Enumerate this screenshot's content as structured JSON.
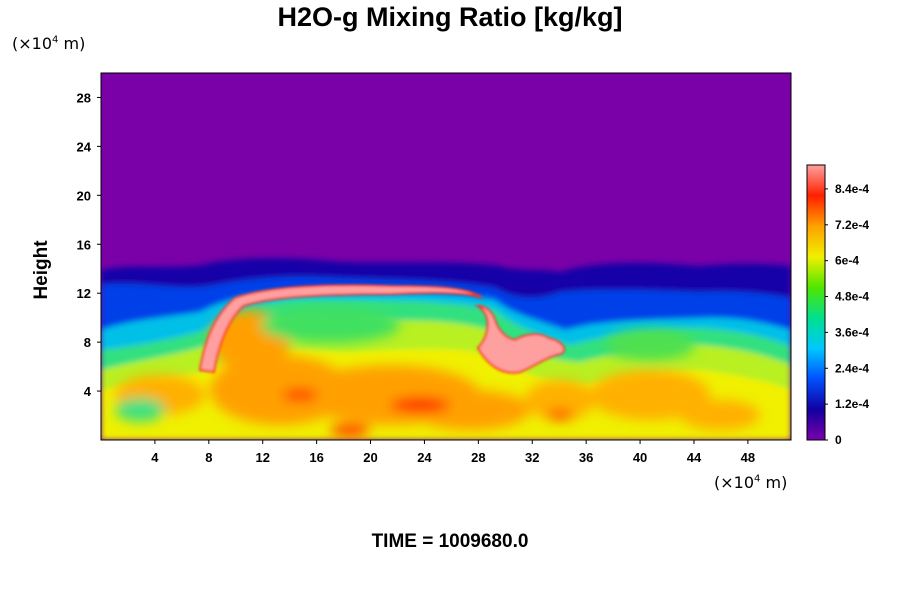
{
  "chart_data": {
    "type": "heatmap",
    "title": "H2O-g Mixing Ratio [kg/kg]",
    "ylabel": "Height",
    "xlabel": "",
    "y_units": {
      "prefix": "(×10",
      "exp": "4",
      "suffix": " m)"
    },
    "x_units": {
      "prefix": "(×10",
      "exp": "4",
      "suffix": " m)"
    },
    "x_ticks": [
      "4",
      "8",
      "12",
      "16",
      "20",
      "24",
      "28",
      "32",
      "36",
      "40",
      "44",
      "48"
    ],
    "x_tick_values": [
      4,
      8,
      12,
      16,
      20,
      24,
      28,
      32,
      36,
      40,
      44,
      48
    ],
    "y_ticks": [
      "4",
      "8",
      "12",
      "16",
      "20",
      "24",
      "28"
    ],
    "y_tick_values": [
      4,
      8,
      12,
      16,
      20,
      24,
      28
    ],
    "xlim": [
      0,
      51.2
    ],
    "ylim": [
      0,
      30
    ],
    "colorbar": {
      "range": [
        0,
        0.00092
      ],
      "labels": [
        "0",
        "1.2e-4",
        "2.4e-4",
        "3.6e-4",
        "4.8e-4",
        "6e-4",
        "7.2e-4",
        "8.4e-4"
      ],
      "label_values": [
        0,
        0.00012,
        0.00024,
        0.00036,
        0.00048,
        0.0006,
        0.00072,
        0.00084
      ],
      "colors": [
        "#7a00a8",
        "#1200a0",
        "#0050ff",
        "#00c8ff",
        "#00e08c",
        "#50e600",
        "#f0f000",
        "#ffa000",
        "#ff2000",
        "#ffa0a0"
      ]
    },
    "field_summary": {
      "moist_layer_top_km_x1e4": 14,
      "dry_region_color": "#7a00a8",
      "saturated_color": "#ffa0a0"
    }
  },
  "footer": {
    "time_label": "TIME = 1009680.0"
  }
}
